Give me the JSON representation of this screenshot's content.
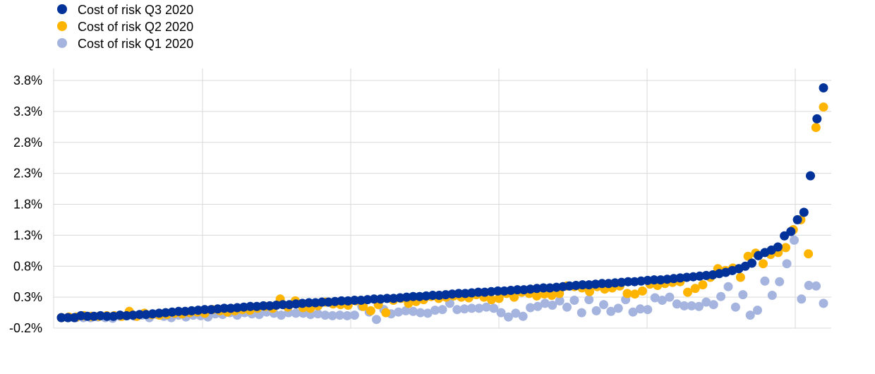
{
  "chart_data": {
    "type": "scatter",
    "title": "",
    "xlabel": "",
    "ylabel": "",
    "ylim": [
      -0.2,
      3.8
    ],
    "yticks": [
      "-0.2%",
      "0.3%",
      "0.8%",
      "1.3%",
      "1.8%",
      "2.3%",
      "2.8%",
      "3.3%",
      "3.8%"
    ],
    "y_tick_values": [
      -0.2,
      0.3,
      0.8,
      1.3,
      1.8,
      2.3,
      2.8,
      3.3,
      3.8
    ],
    "x_tick_labels": "none",
    "grid": "both",
    "legend_position": "top-left",
    "series": [
      {
        "name": "Cost of risk Q3 2020",
        "color": "#003299",
        "values": [
          -0.03,
          -0.03,
          -0.03,
          0.0,
          -0.01,
          -0.01,
          0.0,
          -0.01,
          -0.01,
          0.01,
          0.0,
          0.01,
          0.02,
          0.02,
          0.03,
          0.04,
          0.05,
          0.06,
          0.07,
          0.07,
          0.08,
          0.09,
          0.1,
          0.1,
          0.11,
          0.12,
          0.12,
          0.13,
          0.14,
          0.15,
          0.15,
          0.16,
          0.16,
          0.17,
          0.18,
          0.18,
          0.19,
          0.2,
          0.21,
          0.21,
          0.22,
          0.22,
          0.23,
          0.24,
          0.24,
          0.25,
          0.25,
          0.26,
          0.27,
          0.27,
          0.28,
          0.28,
          0.29,
          0.3,
          0.31,
          0.31,
          0.32,
          0.33,
          0.33,
          0.34,
          0.35,
          0.36,
          0.36,
          0.37,
          0.38,
          0.38,
          0.39,
          0.4,
          0.4,
          0.41,
          0.42,
          0.42,
          0.43,
          0.44,
          0.45,
          0.45,
          0.46,
          0.47,
          0.48,
          0.49,
          0.5,
          0.5,
          0.51,
          0.52,
          0.52,
          0.53,
          0.54,
          0.55,
          0.55,
          0.56,
          0.57,
          0.58,
          0.58,
          0.59,
          0.6,
          0.61,
          0.62,
          0.63,
          0.64,
          0.65,
          0.66,
          0.68,
          0.7,
          0.73,
          0.76,
          0.8,
          0.85,
          0.97,
          1.02,
          1.06,
          1.11,
          1.29,
          1.36,
          1.55,
          1.67,
          2.26,
          3.18,
          3.68
        ]
      },
      {
        "name": "Cost of risk Q2 2020",
        "color": "#FFB400",
        "values": [
          -0.03,
          -0.02,
          -0.02,
          0.0,
          -0.01,
          -0.01,
          0.0,
          0.0,
          -0.01,
          0.07,
          -0.01,
          0.04,
          0.02,
          0.01,
          0.02,
          0.04,
          0.03,
          0.05,
          0.06,
          0.04,
          0.1,
          0.08,
          0.06,
          0.08,
          0.1,
          0.09,
          0.12,
          0.15,
          0.12,
          0.27,
          0.14,
          0.24,
          0.13,
          0.12,
          0.16,
          0.22,
          0.19,
          0.18,
          0.17,
          0.24,
          0.15,
          0.08,
          0.18,
          0.05,
          0.25,
          0.28,
          0.2,
          0.23,
          0.26,
          0.31,
          0.28,
          0.3,
          0.32,
          0.3,
          0.29,
          0.34,
          0.3,
          0.26,
          0.28,
          0.36,
          0.3,
          0.38,
          0.36,
          0.32,
          0.35,
          0.33,
          0.36,
          0.48,
          0.47,
          0.45,
          0.39,
          0.47,
          0.43,
          0.45,
          0.48,
          0.36,
          0.35,
          0.4,
          0.51,
          0.49,
          0.52,
          0.54,
          0.55,
          0.38,
          0.44,
          0.5,
          0.62,
          0.76,
          0.73,
          0.77,
          0.62,
          0.96,
          1.01,
          0.84,
          0.99,
          1.02,
          1.1,
          1.39,
          1.55,
          1.0,
          3.04,
          3.37
        ]
      },
      {
        "name": "Cost of risk Q1 2020",
        "color": "#A4B4DE",
        "values": [
          -0.03,
          -0.03,
          -0.03,
          -0.03,
          -0.03,
          -0.02,
          -0.03,
          -0.04,
          -0.01,
          0.0,
          -0.01,
          0.01,
          -0.03,
          0.02,
          -0.01,
          -0.03,
          0.01,
          -0.02,
          0.01,
          0.0,
          -0.02,
          0.03,
          0.02,
          0.05,
          0.01,
          0.05,
          0.03,
          0.02,
          0.06,
          0.04,
          0.01,
          0.05,
          0.04,
          0.04,
          0.02,
          0.03,
          0.01,
          0.0,
          0.01,
          0.0,
          0.01,
          0.15,
          0.06,
          -0.06,
          0.1,
          0.03,
          0.06,
          0.08,
          0.07,
          0.05,
          0.04,
          0.09,
          0.1,
          0.2,
          0.1,
          0.11,
          0.12,
          0.12,
          0.14,
          0.12,
          0.05,
          -0.02,
          0.04,
          -0.01,
          0.13,
          0.15,
          0.2,
          0.17,
          0.24,
          0.14,
          0.25,
          0.05,
          0.26,
          0.08,
          0.18,
          0.07,
          0.12,
          0.26,
          0.06,
          0.11,
          0.1,
          0.29,
          0.25,
          0.3,
          0.19,
          0.16,
          0.16,
          0.15,
          0.22,
          0.18,
          0.31,
          0.47,
          0.14,
          0.34,
          0.01,
          0.09,
          0.56,
          0.33,
          0.55,
          0.84,
          1.22,
          0.27,
          0.49,
          0.48,
          0.2
        ]
      }
    ]
  }
}
